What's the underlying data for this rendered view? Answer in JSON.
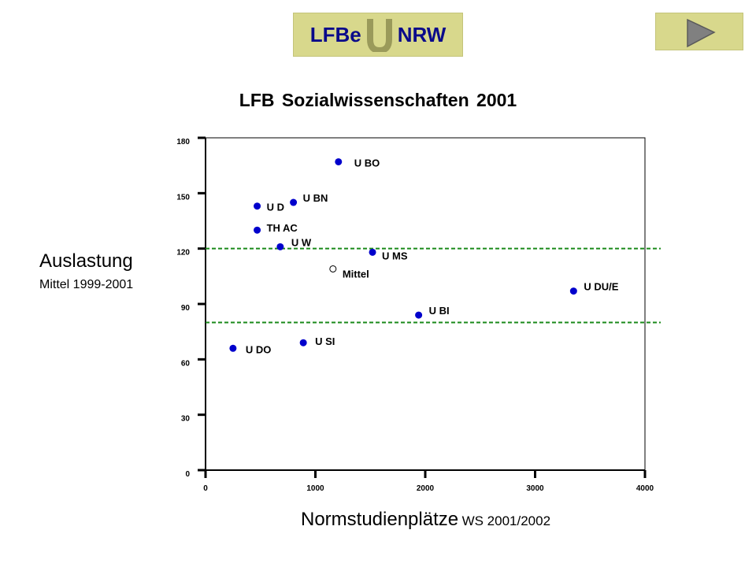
{
  "logo": {
    "left": "LFBe",
    "right": "NRW"
  },
  "next_button_icon": "triangle-right-icon",
  "colors": {
    "accent": "#d8d88c",
    "point": "#0000cc",
    "reference": "#1a8a1a"
  },
  "chart_data": {
    "type": "scatter",
    "title": "LFB Sozialwissenschaften  2001",
    "ylabel": "Auslastung",
    "ylabel_sub": "Mittel 1999-2001",
    "xlabel": "Normstudienplätze",
    "xlabel_sub": "WS 2001/2002",
    "xlim": [
      0,
      4000
    ],
    "ylim": [
      0,
      180
    ],
    "xticks": [
      0,
      1000,
      2000,
      3000,
      4000
    ],
    "yticks": [
      0,
      30,
      60,
      90,
      120,
      150,
      180
    ],
    "grid": false,
    "reference_lines": [
      {
        "y": 120
      },
      {
        "y": 80
      }
    ],
    "points": [
      {
        "label": "U BO",
        "x": 1210,
        "y": 167,
        "style": "filled"
      },
      {
        "label": "U BN",
        "x": 800,
        "y": 145,
        "style": "filled"
      },
      {
        "label": "U D",
        "x": 470,
        "y": 143,
        "style": "filled"
      },
      {
        "label": "TH AC",
        "x": 470,
        "y": 130,
        "style": "filled"
      },
      {
        "label": "U W",
        "x": 680,
        "y": 121,
        "style": "filled"
      },
      {
        "label": "U MS",
        "x": 1520,
        "y": 118,
        "style": "filled"
      },
      {
        "label": "Mittel",
        "x": 1160,
        "y": 109,
        "style": "hollow"
      },
      {
        "label": "U DU/E",
        "x": 3350,
        "y": 97,
        "style": "filled"
      },
      {
        "label": "U BI",
        "x": 1940,
        "y": 84,
        "style": "filled"
      },
      {
        "label": "U SI",
        "x": 890,
        "y": 69,
        "style": "filled"
      },
      {
        "label": "U DO",
        "x": 250,
        "y": 66,
        "style": "filled"
      }
    ]
  }
}
